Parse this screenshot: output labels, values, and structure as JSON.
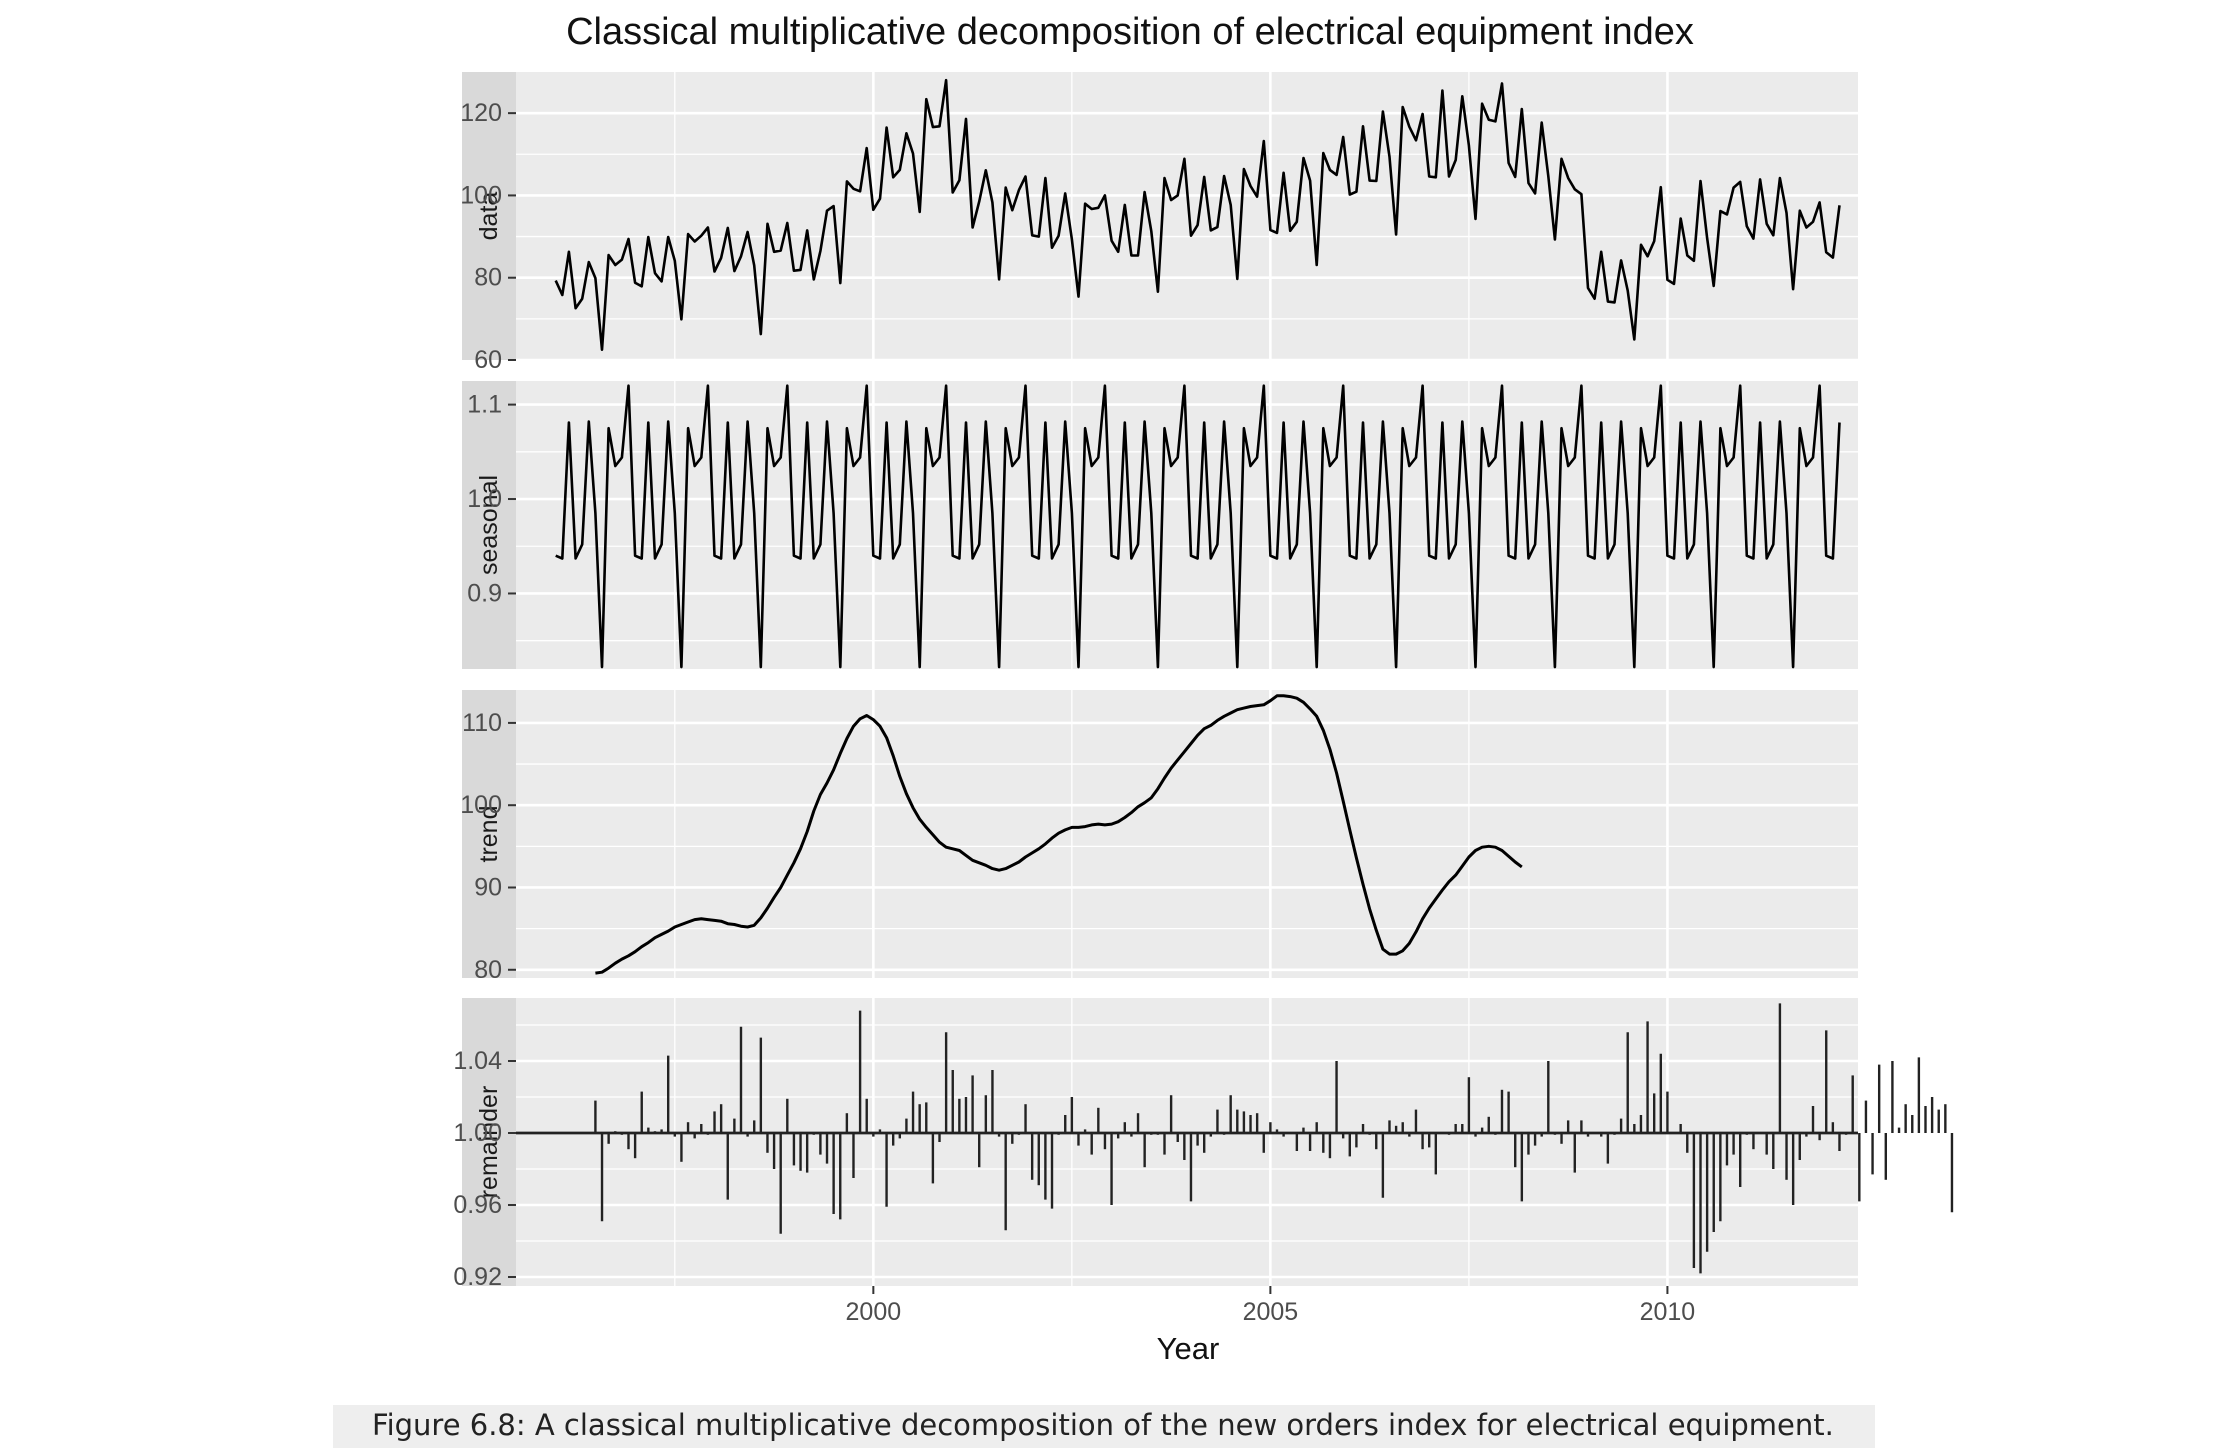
{
  "figure": {
    "caption": "Figure 6.8: A classical multiplicative decomposition of the new orders index for electrical equipment."
  },
  "chart_data": {
    "type": "line",
    "title": "Classical multiplicative decomposition of electrical equipment index",
    "xlabel": "Year",
    "x_ticks": [
      2000,
      2005,
      2010
    ],
    "xlim": [
      1995.5,
      2012.4
    ],
    "start": 1996.0,
    "frequency": 12,
    "colors": {
      "panel_bg": "#ebebeb",
      "strip_bg": "#d9d9d9",
      "grid": "#ffffff",
      "line": "#000000",
      "text": "#4d4d4d"
    },
    "panels": [
      {
        "name": "data",
        "ylim": [
          60,
          130
        ],
        "yticks": [
          60,
          80,
          100,
          120
        ],
        "values": [
          79.3,
          75.8,
          86.3,
          72.6,
          74.9,
          83.8,
          79.9,
          62.5,
          85.5,
          83.1,
          84.4,
          89.4,
          78.8,
          77.9,
          89.9,
          81.1,
          79.1,
          89.9,
          84.1,
          69.9,
          90.6,
          88.8,
          90.2,
          92.2,
          81.5,
          84.8,
          92.1,
          81.6,
          85.2,
          91.1,
          83.0,
          66.3,
          93.1,
          86.3,
          86.6,
          93.3,
          81.7,
          81.9,
          91.5,
          79.6,
          86.5,
          96.3,
          97.4,
          78.7,
          103.4,
          101.6,
          101.0,
          111.5,
          96.5,
          99.2,
          116.5,
          104.4,
          106.2,
          115.1,
          110.2,
          96.0,
          123.4,
          116.6,
          116.8,
          128.0,
          100.7,
          103.7,
          118.6,
          92.2,
          98.5,
          106.1,
          98.3,
          79.6,
          101.9,
          96.4,
          101.3,
          104.6,
          90.3,
          90.0,
          104.2,
          87.3,
          90.2,
          100.5,
          89.3,
          75.4,
          98.0,
          96.7,
          97.0,
          100.0,
          89.0,
          86.3,
          97.7,
          85.4,
          85.4,
          100.8,
          91.3,
          76.6,
          104.2,
          98.9,
          100.0,
          108.9,
          90.2,
          92.8,
          104.5,
          91.5,
          92.3,
          104.7,
          97.7,
          79.7,
          106.4,
          102.3,
          99.7,
          113.2,
          91.6,
          90.9,
          105.5,
          91.4,
          93.6,
          109.1,
          103.6,
          83.1,
          110.3,
          106.2,
          105.0,
          114.2,
          100.2,
          100.9,
          116.8,
          103.6,
          103.5,
          120.4,
          109.4,
          90.5,
          121.5,
          116.7,
          113.4,
          119.8,
          104.6,
          104.4,
          125.5,
          104.6,
          108.6,
          124.1,
          112.1,
          94.3,
          122.3,
          118.4,
          118.0,
          127.2,
          107.9,
          104.5,
          121.0,
          103.0,
          100.5,
          117.7,
          104.7,
          89.3,
          108.9,
          104.2,
          101.5,
          100.3,
          77.5,
          74.9,
          86.3,
          74.2,
          74.0,
          84.2,
          76.9,
          65.0,
          88.0,
          85.2,
          88.9,
          102.0,
          79.5,
          78.5,
          94.4,
          85.4,
          84.1,
          103.5,
          89.7,
          78.0,
          96.2,
          95.4,
          101.9,
          103.3,
          92.5,
          89.5,
          103.9,
          93.1,
          90.3,
          104.2,
          95.8,
          77.2,
          96.3,
          92.2,
          93.6,
          98.3,
          86.2,
          84.9,
          97.6
        ]
      },
      {
        "name": "seasonal",
        "ylim": [
          0.82,
          1.125
        ],
        "yticks": [
          0.9,
          1.0,
          1.1
        ],
        "pattern": [
          0.94,
          0.937,
          1.081,
          0.937,
          0.952,
          1.082,
          0.985,
          0.822,
          1.075,
          1.035,
          1.044,
          1.12
        ]
      },
      {
        "name": "trend",
        "ylim": [
          79.0,
          114.0
        ],
        "yticks": [
          80,
          90,
          100,
          110
        ],
        "values": [
          79.6,
          79.7,
          80.2,
          80.8,
          81.3,
          81.7,
          82.2,
          82.8,
          83.3,
          83.9,
          84.3,
          84.7,
          85.2,
          85.5,
          85.8,
          86.1,
          86.2,
          86.1,
          86.0,
          85.9,
          85.6,
          85.5,
          85.3,
          85.2,
          85.4,
          86.3,
          87.5,
          88.8,
          90.0,
          91.5,
          93.0,
          94.7,
          96.8,
          99.3,
          101.3,
          102.7,
          104.3,
          106.3,
          108.1,
          109.6,
          110.5,
          110.9,
          110.4,
          109.6,
          108.2,
          106.0,
          103.5,
          101.4,
          99.7,
          98.3,
          97.3,
          96.4,
          95.5,
          94.9,
          94.7,
          94.5,
          93.9,
          93.3,
          93.0,
          92.7,
          92.3,
          92.1,
          92.3,
          92.7,
          93.1,
          93.7,
          94.2,
          94.7,
          95.3,
          96.0,
          96.6,
          97.0,
          97.3,
          97.3,
          97.4,
          97.6,
          97.7,
          97.6,
          97.7,
          98.0,
          98.5,
          99.1,
          99.8,
          100.3,
          100.9,
          102.0,
          103.3,
          104.5,
          105.5,
          106.5,
          107.5,
          108.5,
          109.3,
          109.7,
          110.3,
          110.8,
          111.2,
          111.6,
          111.8,
          112.0,
          112.1,
          112.2,
          112.7,
          113.3,
          113.3,
          113.2,
          113.0,
          112.5,
          111.7,
          110.8,
          109.1,
          106.8,
          103.9,
          100.5,
          97.0,
          93.6,
          90.4,
          87.4,
          84.8,
          82.5,
          81.9,
          81.9,
          82.3,
          83.2,
          84.6,
          86.2,
          87.5,
          88.6,
          89.7,
          90.7,
          91.5,
          92.6,
          93.7,
          94.5,
          94.9,
          95.0,
          94.9,
          94.5,
          93.8,
          93.1,
          92.5
        ]
      },
      {
        "name": "remainder",
        "ylim": [
          0.915,
          1.075
        ],
        "yticks": [
          0.92,
          0.96,
          1.0,
          1.04
        ],
        "values": [
          1.018,
          0.951,
          0.994,
          1.001,
          0.999,
          0.991,
          0.986,
          1.023,
          1.003,
          1.001,
          1.002,
          1.043,
          0.998,
          0.984,
          1.006,
          0.997,
          1.005,
          0.999,
          1.012,
          1.016,
          0.963,
          1.008,
          1.059,
          0.998,
          1.007,
          1.053,
          0.989,
          0.98,
          0.944,
          1.019,
          0.982,
          0.979,
          0.978,
          0.999,
          0.988,
          0.983,
          0.955,
          0.952,
          1.011,
          0.975,
          1.068,
          1.019,
          0.998,
          1.002,
          0.959,
          0.993,
          0.997,
          1.008,
          1.023,
          1.016,
          1.017,
          0.972,
          0.995,
          1.056,
          1.035,
          1.019,
          1.02,
          1.032,
          0.981,
          1.021,
          1.035,
          0.998,
          0.946,
          0.994,
          0.999,
          1.016,
          0.974,
          0.971,
          0.963,
          0.958,
          0.999,
          1.01,
          1.02,
          0.993,
          1.002,
          0.988,
          1.014,
          0.991,
          0.96,
          0.997,
          1.006,
          0.998,
          1.011,
          0.981,
          0.999,
          0.999,
          0.988,
          1.021,
          0.995,
          0.985,
          0.962,
          0.993,
          0.989,
          0.998,
          1.013,
          0.999,
          1.021,
          1.013,
          1.012,
          1.01,
          1.011,
          0.989,
          1.006,
          1.002,
          0.998,
          1.0,
          0.99,
          1.003,
          0.99,
          1.006,
          0.989,
          0.986,
          1.04,
          0.997,
          0.987,
          0.992,
          1.005,
          0.999,
          0.991,
          0.964,
          1.007,
          1.004,
          1.006,
          0.998,
          1.013,
          0.991,
          0.992,
          0.977,
          1.0,
          0.999,
          1.005,
          1.005,
          1.031,
          0.998,
          1.003,
          1.009,
          0.999,
          1.024,
          1.023,
          0.981,
          0.962,
          0.988,
          0.993,
          0.998,
          1.04,
          0.999,
          0.994,
          1.007,
          0.978,
          1.007,
          0.998,
          1.0,
          0.998,
          0.983,
          0.999,
          1.008,
          1.056,
          1.005,
          1.01,
          1.062,
          1.022,
          1.044,
          1.023,
          1.0,
          1.005,
          0.989,
          0.925,
          0.922,
          0.934,
          0.945,
          0.951,
          0.982,
          0.988,
          0.97,
          0.999,
          0.991,
          1.0,
          0.988,
          0.98,
          1.072,
          0.974,
          0.96,
          0.985,
          0.998,
          1.015,
          0.996,
          1.057,
          1.006,
          0.99,
          0.999,
          1.032,
          0.962,
          1.018,
          0.977,
          1.038,
          0.974,
          1.04,
          1.003,
          1.016,
          1.01,
          1.042,
          1.015,
          1.02,
          1.013,
          1.016,
          0.956
        ]
      }
    ]
  }
}
